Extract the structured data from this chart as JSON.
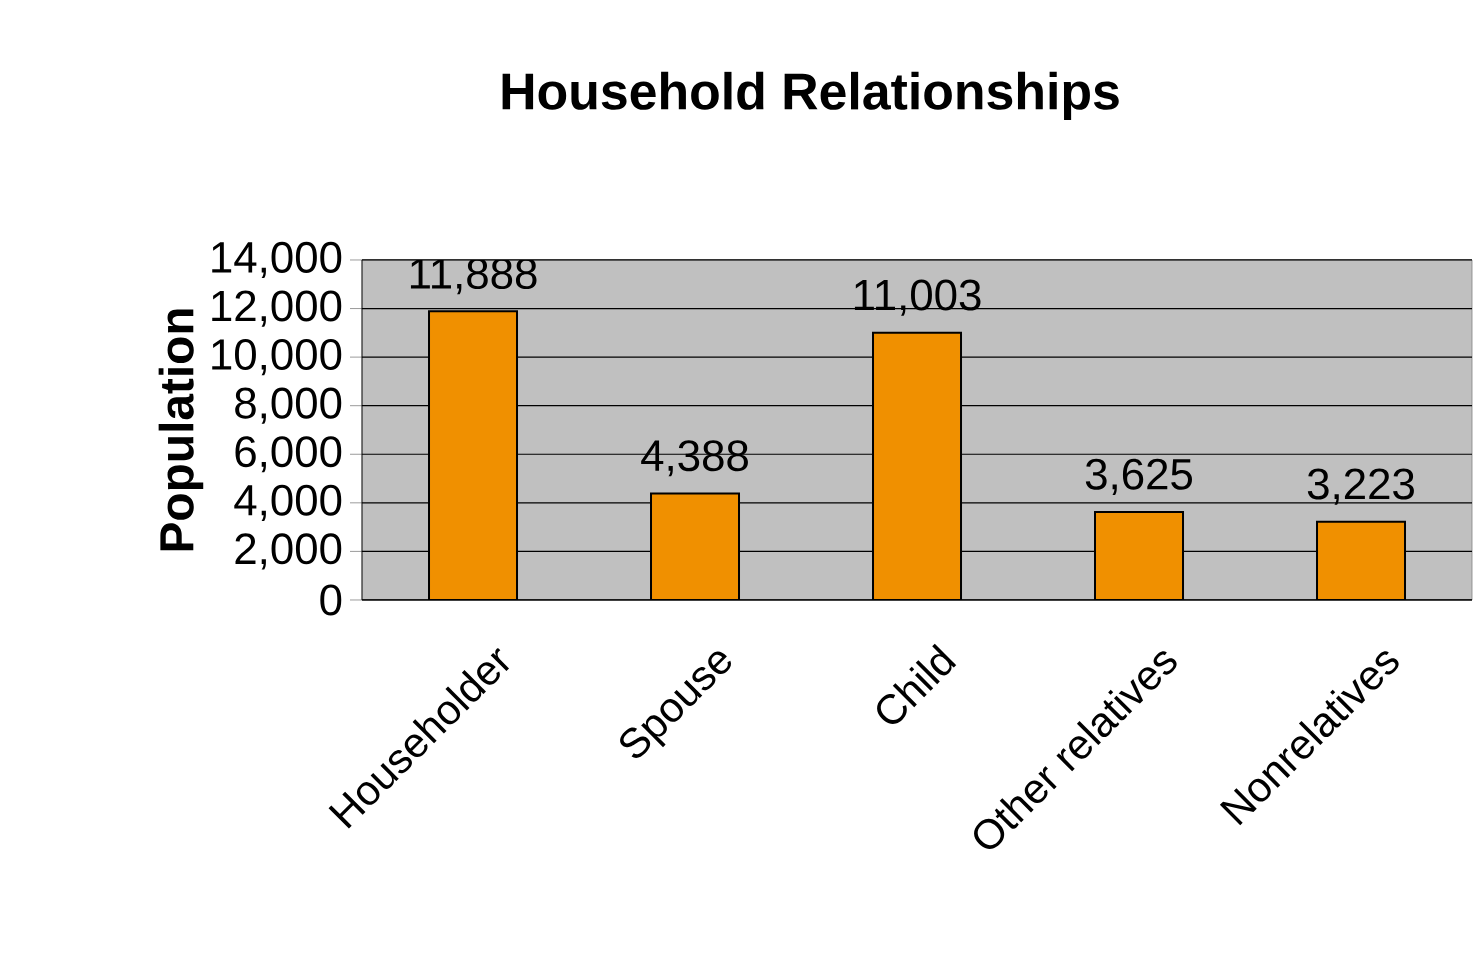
{
  "chart_data": {
    "type": "bar",
    "title": "Household Relationships",
    "ylabel": "Population",
    "categories": [
      "Householder",
      "Spouse",
      "Child",
      "Other relatives",
      "Nonrelatives"
    ],
    "values": [
      11888,
      4388,
      11003,
      3625,
      3223
    ],
    "value_labels": [
      "11,888",
      "4,388",
      "11,003",
      "3,625",
      "3,223"
    ],
    "color": "#f09000",
    "ylim": [
      0,
      14000
    ],
    "yticks": [
      {
        "value": 0,
        "label": "0"
      },
      {
        "value": 2000,
        "label": "2,000"
      },
      {
        "value": 4000,
        "label": "4,000"
      },
      {
        "value": 6000,
        "label": "6,000"
      },
      {
        "value": 8000,
        "label": "8,000"
      },
      {
        "value": 10000,
        "label": "10,000"
      },
      {
        "value": 12000,
        "label": "12,000"
      },
      {
        "value": 14000,
        "label": "14,000"
      }
    ],
    "grid": "y"
  }
}
